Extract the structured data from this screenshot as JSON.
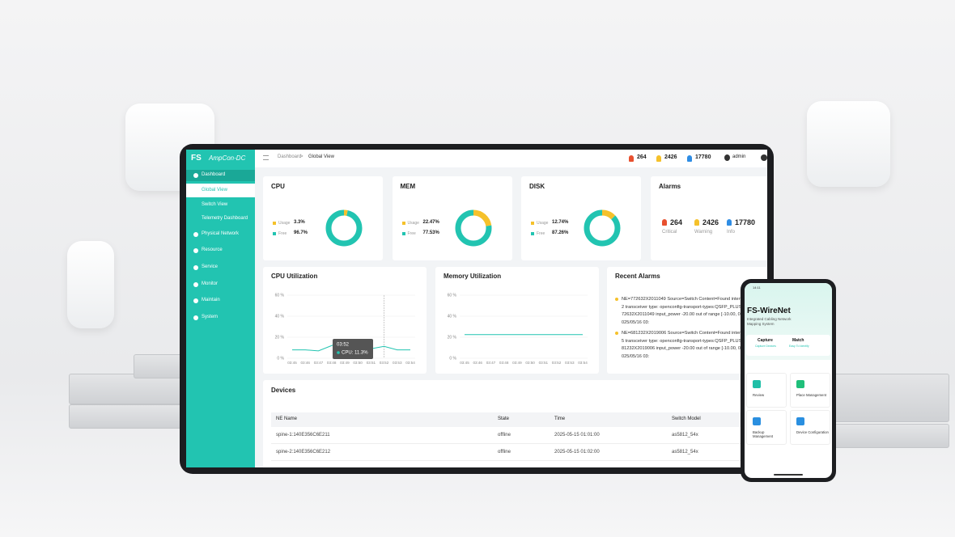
{
  "header": {
    "brand": "FS",
    "product": "AmpCon-DC",
    "breadcrumb": [
      "Dashboard",
      "Global View"
    ],
    "breadcrumb_separator": ">",
    "user": "admin"
  },
  "sidebar": {
    "items": [
      {
        "label": "Dashboard",
        "children": [
          "Global View",
          "Switch View",
          "Telemetry Dashboard"
        ]
      },
      {
        "label": "Physical Network"
      },
      {
        "label": "Resource"
      },
      {
        "label": "Service"
      },
      {
        "label": "Monitor"
      },
      {
        "label": "Maintain"
      },
      {
        "label": "System"
      }
    ]
  },
  "usage_cards": [
    {
      "title": "CPU",
      "usage_label": "Usage",
      "usage": 3.3,
      "usage_text": "3.3%",
      "free_label": "Free",
      "free": 96.7,
      "free_text": "96.7%"
    },
    {
      "title": "MEM",
      "usage_label": "Usage",
      "usage": 22.47,
      "usage_text": "22.47%",
      "free_label": "Free",
      "free": 77.53,
      "free_text": "77.53%"
    },
    {
      "title": "DISK",
      "usage_label": "Usage",
      "usage": 12.74,
      "usage_text": "12.74%",
      "free_label": "Free",
      "free": 87.26,
      "free_text": "87.26%"
    }
  ],
  "alarms": {
    "title": "Alarms",
    "items": [
      {
        "count": "264",
        "label": "Critical"
      },
      {
        "count": "2426",
        "label": "Warning"
      },
      {
        "count": "17780",
        "label": "Info"
      }
    ]
  },
  "cpu_utilization": {
    "title": "CPU Utilization",
    "x": [
      "03:45",
      "03:46",
      "03:47",
      "03:48",
      "03:49",
      "03:50",
      "03:51",
      "03:52",
      "03:53",
      "03:54"
    ],
    "values": [
      8,
      8,
      7,
      12,
      17,
      10,
      9,
      11.3,
      8,
      8
    ],
    "ylim": [
      0,
      60
    ],
    "yticks": [
      {
        "value": 0,
        "label": "0 %"
      },
      {
        "value": 20,
        "label": "20 %"
      },
      {
        "value": 40,
        "label": "40 %"
      },
      {
        "value": 60,
        "label": "60 %"
      }
    ],
    "tooltip": {
      "time": "03:52",
      "text": "CPU: 11.3%"
    }
  },
  "memory_utilization": {
    "title": "Memory Utilization",
    "x": [
      "03:45",
      "03:46",
      "03:47",
      "03:48",
      "03:49",
      "03:50",
      "03:51",
      "03:52",
      "03:53",
      "03:54"
    ],
    "values": [
      22.5,
      22.5,
      22.5,
      22.5,
      22.5,
      22.5,
      22.5,
      22.5,
      22.5,
      22.5
    ],
    "ylim": [
      0,
      60
    ],
    "yticks": [
      {
        "value": 0,
        "label": "0 %"
      },
      {
        "value": 20,
        "label": "20 %"
      },
      {
        "value": 40,
        "label": "40 %"
      },
      {
        "value": 60,
        "label": "60 %"
      }
    ]
  },
  "recent_alarms": {
    "title": "Recent Alarms",
    "items": [
      "NE=772632X2011049 Source=Switch Content=Found interface: xe-1/1/2 transceiver type: openconfig-transport-types:QSFP_PLUS on switch 772632X2011049 input_power -20.00 out of range [-10.00, 0.00] Time=2025/05/16 03:",
      "NE=681232X2019006 Source=Switch Content=Found interface: xe-1/1/5 transceiver type: openconfig-transport-types:QSFP_PLUS on switch 681232X2019006 input_power -20.00 out of range [-10.00, 0.00] Time=2025/05/16 03:"
    ]
  },
  "devices": {
    "title": "Devices",
    "columns": [
      "NE Name",
      "State",
      "Time",
      "Switch Model"
    ],
    "rows": [
      [
        "spine-1:140E356C6E211",
        "offline",
        "2025-05-15 01:01:00",
        "as5812_54x"
      ],
      [
        "spine-2:140E356C6E212",
        "offline",
        "2025-05-15 01:02:00",
        "as5812_54x"
      ]
    ]
  },
  "phone": {
    "status_time": "14:11",
    "title": "FS-WireNet",
    "subtitle": "Integrated Cabling Network Mapping System",
    "tabs": [
      {
        "label": "Capture",
        "sub": "Capture Devices"
      },
      {
        "label": "Match",
        "sub": "Easy To Identify"
      }
    ],
    "tiles": [
      "Review",
      "Place Management",
      "Backup Management",
      "Device Configuration"
    ]
  }
}
